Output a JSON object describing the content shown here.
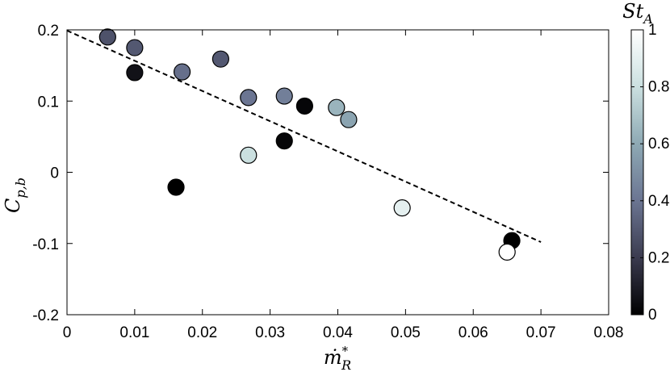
{
  "chart_data": {
    "type": "scatter",
    "xlabel_base": "ṁ",
    "xlabel_sup": "*",
    "xlabel_sub": "R",
    "ylabel_base": "C",
    "ylabel_sub": "p,b",
    "xlim": [
      0,
      0.08
    ],
    "ylim": [
      -0.2,
      0.2
    ],
    "x_ticks": [
      0,
      0.01,
      0.02,
      0.03,
      0.04,
      0.05,
      0.06,
      0.07,
      0.08
    ],
    "x_tick_labels": [
      "0",
      "0.01",
      "0.02",
      "0.03",
      "0.04",
      "0.05",
      "0.06",
      "0.07",
      "0.08"
    ],
    "y_ticks": [
      -0.2,
      -0.1,
      0,
      0.1,
      0.2
    ],
    "y_tick_labels": [
      "-0.2",
      "-0.1",
      "0",
      "0.1",
      "0.2"
    ],
    "grid": false,
    "colorbar": {
      "label_base": "St",
      "label_sub": "A",
      "min": 0,
      "max": 1,
      "ticks": [
        0,
        0.2,
        0.4,
        0.6,
        0.8,
        1
      ],
      "tick_labels": [
        "0",
        "0.2",
        "0.4",
        "0.6",
        "0.8",
        "1"
      ],
      "colormap": "bone",
      "colors": [
        "#000000",
        "#3b3b4f",
        "#6b7592",
        "#8ea9b4",
        "#cbe0e0",
        "#ffffff"
      ]
    },
    "points": [
      {
        "x": 0.006,
        "y": 0.19,
        "c": 0.28
      },
      {
        "x": 0.01,
        "y": 0.175,
        "c": 0.3
      },
      {
        "x": 0.01,
        "y": 0.14,
        "c": 0.06
      },
      {
        "x": 0.017,
        "y": 0.141,
        "c": 0.38
      },
      {
        "x": 0.0227,
        "y": 0.159,
        "c": 0.3
      },
      {
        "x": 0.0268,
        "y": 0.105,
        "c": 0.4
      },
      {
        "x": 0.0321,
        "y": 0.107,
        "c": 0.44
      },
      {
        "x": 0.0351,
        "y": 0.093,
        "c": 0.02
      },
      {
        "x": 0.0398,
        "y": 0.091,
        "c": 0.64
      },
      {
        "x": 0.0416,
        "y": 0.074,
        "c": 0.58
      },
      {
        "x": 0.0268,
        "y": 0.024,
        "c": 0.8
      },
      {
        "x": 0.0321,
        "y": 0.044,
        "c": 0.02
      },
      {
        "x": 0.0161,
        "y": -0.021,
        "c": 0.0
      },
      {
        "x": 0.0495,
        "y": -0.05,
        "c": 0.9
      },
      {
        "x": 0.0657,
        "y": -0.096,
        "c": 0.0
      },
      {
        "x": 0.065,
        "y": -0.112,
        "c": 1.0
      }
    ],
    "fit_line": {
      "style": "dashed",
      "x": [
        0,
        0.07
      ],
      "y": [
        0.199,
        -0.098
      ]
    }
  }
}
